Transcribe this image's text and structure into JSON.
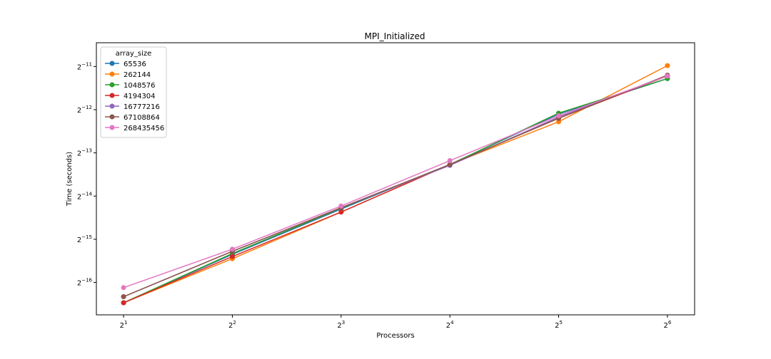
{
  "chart_data": {
    "type": "line",
    "title": "MPI_Initialized",
    "xlabel": "Processors",
    "ylabel": "Time (seconds)",
    "x_scale": "log2",
    "y_scale": "log2",
    "x": [
      2,
      4,
      8,
      16,
      32,
      64
    ],
    "x_tick_labels": [
      {
        "base": "2",
        "exp": "1"
      },
      {
        "base": "2",
        "exp": "2"
      },
      {
        "base": "2",
        "exp": "3"
      },
      {
        "base": "2",
        "exp": "4"
      },
      {
        "base": "2",
        "exp": "5"
      },
      {
        "base": "2",
        "exp": "6"
      }
    ],
    "y_ticks": [
      -16,
      -15,
      -14,
      -13,
      -12,
      -11
    ],
    "y_tick_labels": [
      {
        "base": "2",
        "exp": "−16"
      },
      {
        "base": "2",
        "exp": "−15"
      },
      {
        "base": "2",
        "exp": "−14"
      },
      {
        "base": "2",
        "exp": "−13"
      },
      {
        "base": "2",
        "exp": "−12"
      },
      {
        "base": "2",
        "exp": "−11"
      }
    ],
    "xlim_log2": [
      0.75,
      6.25
    ],
    "ylim_log2": [
      -16.75,
      -10.45
    ],
    "grid": false,
    "legend": {
      "title": "array_size",
      "placement": "upper-left"
    },
    "series": [
      {
        "name": "65536",
        "color": "#1f77b4",
        "y_log2": [
          -16.47,
          -15.35,
          -14.3,
          -13.27,
          -12.1,
          -11.28
        ]
      },
      {
        "name": "262144",
        "color": "#ff7f0e",
        "y_log2": [
          -16.47,
          -15.45,
          -14.37,
          -13.27,
          -12.28,
          -10.98
        ]
      },
      {
        "name": "1048576",
        "color": "#2ca02c",
        "y_log2": [
          -16.47,
          -15.33,
          -14.28,
          -13.27,
          -12.08,
          -11.28
        ]
      },
      {
        "name": "4194304",
        "color": "#d62728",
        "y_log2": [
          -16.47,
          -15.4,
          -14.37,
          -13.27,
          -12.2,
          -11.22
        ]
      },
      {
        "name": "16777216",
        "color": "#9467bd",
        "y_log2": [
          -16.33,
          -15.28,
          -14.27,
          -13.29,
          -12.17,
          -11.22
        ]
      },
      {
        "name": "67108864",
        "color": "#8c564b",
        "y_log2": [
          -16.33,
          -15.28,
          -14.27,
          -13.27,
          -12.2,
          -11.2
        ]
      },
      {
        "name": "268435456",
        "color": "#e377c2",
        "y_log2": [
          -16.12,
          -15.23,
          -14.23,
          -13.18,
          -12.14,
          -11.22
        ]
      }
    ]
  }
}
